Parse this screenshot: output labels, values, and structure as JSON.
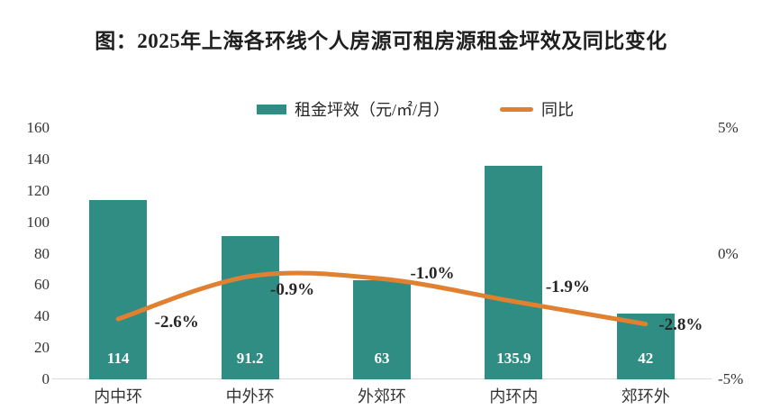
{
  "title": "图：2025年上海各环线个人房源可租房源租金坪效及同比变化",
  "legend": {
    "bar_label": "租金坪效（元/㎡/月）",
    "line_label": "同比"
  },
  "colors": {
    "bar": "#2F8D84",
    "line": "#E08030",
    "axis_text": "#333333",
    "baseline": "#d9d9d9",
    "bar_value_text": "#ffffff",
    "pct_label_text": "#262626"
  },
  "chart_data": {
    "type": "bar",
    "title": "图：2025年上海各环线个人房源可租房源租金坪效及同比变化",
    "categories": [
      "内中环",
      "中外环",
      "外郊环",
      "内环内",
      "郊环外"
    ],
    "series": [
      {
        "name": "租金坪效（元/㎡/月）",
        "type": "bar",
        "axis": "left",
        "color": "#2F8D84",
        "values": [
          114,
          91.2,
          63,
          135.9,
          42
        ],
        "labels": [
          "114",
          "91.2",
          "63",
          "135.9",
          "42"
        ]
      },
      {
        "name": "同比",
        "type": "line",
        "axis": "right",
        "color": "#E08030",
        "values": [
          -2.6,
          -0.9,
          -1.0,
          -1.9,
          -2.8
        ],
        "labels": [
          "-2.6%",
          "-0.9%",
          "-1.0%",
          "-1.9%",
          "-2.8%"
        ]
      }
    ],
    "left_axis": {
      "ticks": [
        "160",
        "140",
        "120",
        "100",
        "80",
        "60",
        "40",
        "20",
        "0"
      ],
      "min": 0,
      "max": 160
    },
    "right_axis": {
      "ticks": [
        "5%",
        "0%",
        "-5%"
      ],
      "min": -5,
      "max": 5
    },
    "grid": false,
    "legend_position": "top"
  }
}
